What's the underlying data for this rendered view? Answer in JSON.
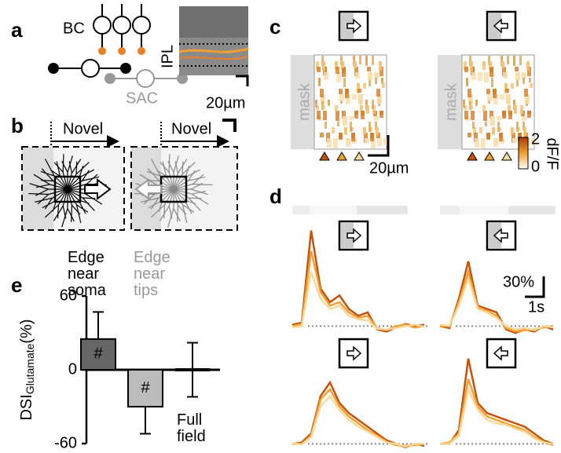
{
  "panels": {
    "a": {
      "label": "a",
      "bc": "BC",
      "sac": "SAC",
      "ipl": "IPL",
      "scale": "20µm"
    },
    "b": {
      "label": "b",
      "novel_left": "Novel",
      "novel_right": "Novel",
      "edge_soma": "Edge near soma",
      "edge_tips": "Edge near tips"
    },
    "c": {
      "label": "c",
      "mask_left": "mask",
      "mask_right": "mask",
      "scale": "20µm",
      "colorbar": {
        "label": "dF/F",
        "max": 2,
        "min": 0
      }
    },
    "d": {
      "label": "d",
      "scale_y": "30%",
      "scale_x": "1s"
    },
    "e": {
      "label": "e"
    }
  },
  "chart_data": [
    {
      "type": "line",
      "x": [
        0,
        0.5,
        1,
        1.5,
        2,
        2.5,
        3,
        3.5,
        4,
        4.5,
        5,
        5.5,
        6,
        6.5,
        7
      ],
      "ylim": [
        -10,
        150
      ],
      "series": [
        {
          "color": "#c8500a",
          "values": [
            2,
            5,
            140,
            55,
            35,
            45,
            25,
            15,
            20,
            -5,
            -8,
            -2,
            3,
            0,
            2
          ]
        },
        {
          "color": "#f0a030",
          "values": [
            0,
            3,
            110,
            50,
            30,
            35,
            20,
            12,
            15,
            -3,
            -6,
            0,
            2,
            -2,
            0
          ]
        },
        {
          "color": "#f8d898",
          "values": [
            -2,
            0,
            80,
            40,
            25,
            30,
            15,
            10,
            8,
            -4,
            -5,
            -3,
            0,
            2,
            -1
          ]
        }
      ]
    },
    {
      "type": "line",
      "x": [
        0,
        0.5,
        1,
        1.5,
        2,
        2.5,
        3,
        3.5,
        4,
        4.5,
        5,
        5.5,
        6
      ],
      "ylim": [
        -10,
        150
      ],
      "series": [
        {
          "color": "#c8500a",
          "values": [
            0,
            -3,
            40,
            95,
            30,
            25,
            20,
            -5,
            -10,
            -5,
            -8,
            0,
            -5
          ]
        },
        {
          "color": "#f0a030",
          "values": [
            0,
            0,
            35,
            80,
            28,
            22,
            15,
            -3,
            -8,
            -6,
            -5,
            -2,
            0
          ]
        },
        {
          "color": "#f8d898",
          "values": [
            2,
            0,
            30,
            70,
            25,
            20,
            12,
            0,
            -5,
            -3,
            -6,
            0,
            -2
          ]
        }
      ]
    },
    {
      "type": "line",
      "x": [
        0,
        0.5,
        1,
        1.5,
        2,
        2.5,
        3,
        3.5,
        4,
        4.5,
        5,
        5.5,
        6,
        6.5,
        7
      ],
      "ylim": [
        -10,
        150
      ],
      "series": [
        {
          "color": "#c8500a",
          "values": [
            0,
            2,
            15,
            70,
            90,
            60,
            45,
            35,
            25,
            15,
            5,
            0,
            -5,
            0,
            -3
          ]
        },
        {
          "color": "#f0a030",
          "values": [
            0,
            0,
            12,
            65,
            80,
            55,
            40,
            30,
            20,
            12,
            3,
            -2,
            -3,
            -2,
            0
          ]
        },
        {
          "color": "#f8d898",
          "values": [
            1,
            -1,
            10,
            55,
            70,
            50,
            35,
            25,
            18,
            10,
            2,
            0,
            -4,
            0,
            0
          ]
        }
      ]
    },
    {
      "type": "line",
      "x": [
        0,
        0.5,
        1,
        1.5,
        2,
        2.5,
        3,
        3.5,
        4,
        4.5,
        5,
        5.5,
        6
      ],
      "ylim": [
        -10,
        150
      ],
      "series": [
        {
          "color": "#c8500a",
          "values": [
            0,
            0,
            20,
            125,
            60,
            45,
            40,
            35,
            30,
            25,
            15,
            5,
            0
          ]
        },
        {
          "color": "#f0a030",
          "values": [
            0,
            2,
            15,
            95,
            55,
            40,
            35,
            30,
            25,
            20,
            10,
            3,
            -2
          ]
        },
        {
          "color": "#f8d898",
          "values": [
            0,
            0,
            12,
            80,
            50,
            35,
            30,
            28,
            22,
            18,
            8,
            2,
            0
          ]
        }
      ]
    },
    {
      "type": "bar",
      "ylabel": {
        "main": "DSI",
        "sub": "Glutamate",
        "unit": "(%)"
      },
      "categories": [
        null,
        null,
        "Full field"
      ],
      "values": [
        25,
        -30,
        0
      ],
      "errors": [
        22,
        22,
        22
      ],
      "annotations": [
        "#",
        "#",
        null
      ],
      "colors": [
        "#666666",
        "#bbbbbb",
        "#000000"
      ],
      "ylim": [
        -60,
        60
      ],
      "yticks": [
        60,
        0,
        -60
      ]
    }
  ]
}
